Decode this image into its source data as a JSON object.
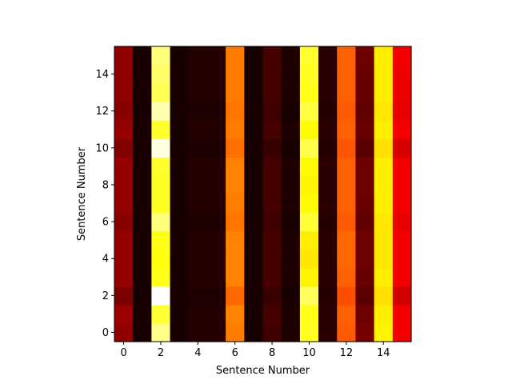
{
  "chart_data": {
    "type": "heatmap",
    "colormap": "hot",
    "xlabel": "Sentence Number",
    "ylabel": "Sentence Number",
    "x_categories": [
      0,
      1,
      2,
      3,
      4,
      5,
      6,
      7,
      8,
      9,
      10,
      11,
      12,
      13,
      14,
      15
    ],
    "y_categories": [
      0,
      1,
      2,
      3,
      4,
      5,
      6,
      7,
      8,
      9,
      10,
      11,
      12,
      13,
      14,
      15
    ],
    "x_ticks": [
      "0",
      "2",
      "4",
      "6",
      "8",
      "10",
      "12",
      "14"
    ],
    "y_ticks": [
      "0",
      "2",
      "4",
      "6",
      "8",
      "10",
      "12",
      "14"
    ],
    "vmin": 0,
    "vmax": 1,
    "origin": "lower",
    "values": [
      [
        0.2,
        0.02,
        0.88,
        0.02,
        0.04,
        0.04,
        0.55,
        0.02,
        0.08,
        0.03,
        0.78,
        0.05,
        0.5,
        0.16,
        0.73,
        0.35
      ],
      [
        0.22,
        0.02,
        0.8,
        0.02,
        0.04,
        0.04,
        0.56,
        0.02,
        0.09,
        0.03,
        0.77,
        0.05,
        0.51,
        0.15,
        0.72,
        0.35
      ],
      [
        0.17,
        0.02,
        1.0,
        0.02,
        0.03,
        0.03,
        0.52,
        0.02,
        0.07,
        0.02,
        0.84,
        0.04,
        0.48,
        0.12,
        0.7,
        0.3
      ],
      [
        0.21,
        0.02,
        0.77,
        0.02,
        0.04,
        0.04,
        0.56,
        0.02,
        0.09,
        0.03,
        0.73,
        0.05,
        0.51,
        0.14,
        0.72,
        0.35
      ],
      [
        0.21,
        0.02,
        0.76,
        0.02,
        0.04,
        0.04,
        0.56,
        0.02,
        0.09,
        0.03,
        0.71,
        0.05,
        0.52,
        0.15,
        0.71,
        0.35
      ],
      [
        0.21,
        0.02,
        0.77,
        0.02,
        0.04,
        0.04,
        0.56,
        0.02,
        0.09,
        0.03,
        0.72,
        0.05,
        0.52,
        0.15,
        0.71,
        0.35
      ],
      [
        0.19,
        0.02,
        0.87,
        0.02,
        0.03,
        0.03,
        0.54,
        0.02,
        0.08,
        0.02,
        0.8,
        0.04,
        0.5,
        0.13,
        0.71,
        0.33
      ],
      [
        0.21,
        0.02,
        0.78,
        0.02,
        0.04,
        0.04,
        0.55,
        0.02,
        0.09,
        0.03,
        0.74,
        0.05,
        0.51,
        0.14,
        0.72,
        0.35
      ],
      [
        0.21,
        0.02,
        0.78,
        0.02,
        0.04,
        0.04,
        0.56,
        0.02,
        0.09,
        0.03,
        0.73,
        0.05,
        0.51,
        0.15,
        0.72,
        0.35
      ],
      [
        0.21,
        0.02,
        0.79,
        0.02,
        0.04,
        0.04,
        0.56,
        0.02,
        0.09,
        0.03,
        0.74,
        0.05,
        0.51,
        0.15,
        0.72,
        0.35
      ],
      [
        0.18,
        0.02,
        0.97,
        0.02,
        0.03,
        0.03,
        0.53,
        0.02,
        0.07,
        0.02,
        0.82,
        0.04,
        0.49,
        0.12,
        0.7,
        0.31
      ],
      [
        0.21,
        0.02,
        0.79,
        0.02,
        0.04,
        0.04,
        0.55,
        0.02,
        0.09,
        0.03,
        0.74,
        0.05,
        0.51,
        0.14,
        0.72,
        0.35
      ],
      [
        0.19,
        0.02,
        0.92,
        0.02,
        0.03,
        0.03,
        0.54,
        0.02,
        0.08,
        0.02,
        0.81,
        0.04,
        0.5,
        0.13,
        0.71,
        0.33
      ],
      [
        0.2,
        0.02,
        0.83,
        0.02,
        0.04,
        0.04,
        0.55,
        0.02,
        0.09,
        0.03,
        0.77,
        0.05,
        0.51,
        0.14,
        0.72,
        0.34
      ],
      [
        0.2,
        0.02,
        0.85,
        0.02,
        0.04,
        0.04,
        0.55,
        0.02,
        0.09,
        0.03,
        0.78,
        0.05,
        0.51,
        0.14,
        0.72,
        0.34
      ],
      [
        0.2,
        0.02,
        0.87,
        0.02,
        0.04,
        0.04,
        0.55,
        0.02,
        0.09,
        0.03,
        0.79,
        0.05,
        0.51,
        0.15,
        0.72,
        0.35
      ]
    ]
  }
}
